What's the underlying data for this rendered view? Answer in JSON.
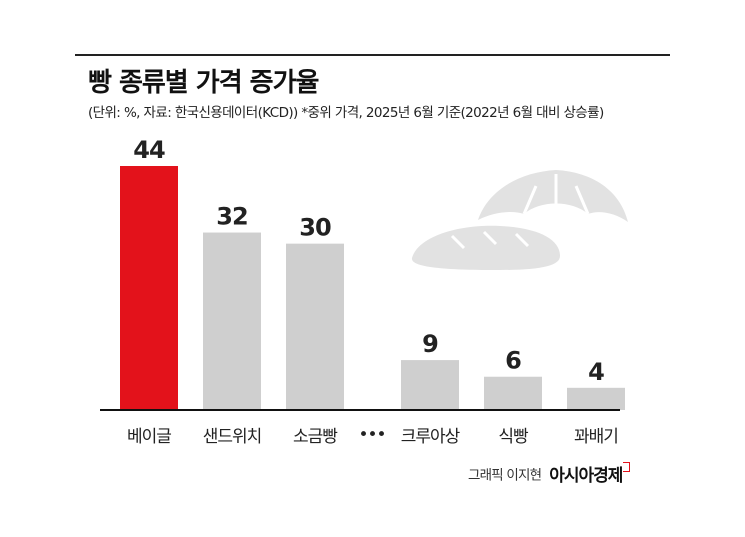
{
  "header": {
    "title": "빵 종류별 가격 증가율",
    "subtitle": "(단위: %, 자료: 한국신용데이터(KCD))  *중위 가격, 2025년 6월 기준(2022년 6월 대비 상승률)"
  },
  "chart_data": {
    "type": "bar",
    "categories": [
      "베이글",
      "샌드위치",
      "소금빵",
      "크루아상",
      "식빵",
      "꽈배기"
    ],
    "values": [
      44,
      32,
      30,
      9,
      6,
      4
    ],
    "gap_marker": "•••",
    "title": "빵 종류별 가격 증가율",
    "xlabel": "",
    "ylabel": "",
    "ylim": [
      0,
      44
    ],
    "grid": false,
    "legend": "none",
    "colors": {
      "highlight": "#e3121b",
      "default": "#cfcfcf",
      "baseline": "#111111",
      "illustration": "#e2e2e2"
    }
  },
  "footer": {
    "credit": "그래픽 이지현",
    "brand": "아시아경제"
  }
}
